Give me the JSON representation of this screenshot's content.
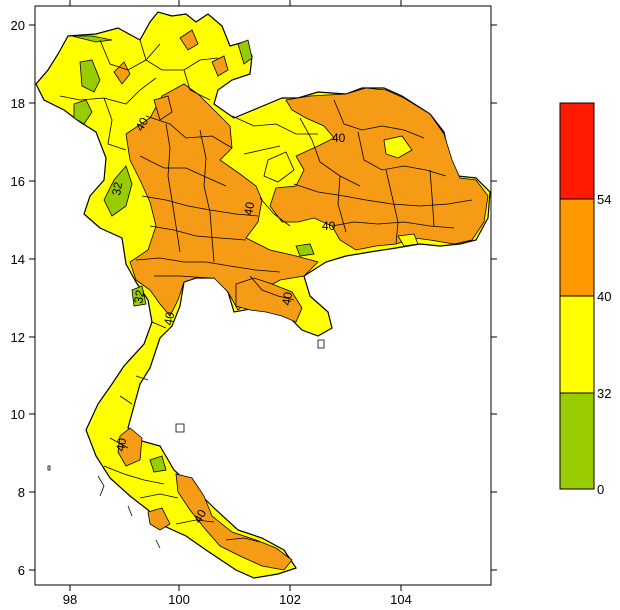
{
  "map": {
    "x_ticks": [
      "98",
      "100",
      "102",
      "104"
    ],
    "y_ticks": [
      "20",
      "18",
      "16",
      "14",
      "12",
      "10",
      "8",
      "6"
    ],
    "contour_labels": [
      "40",
      "40",
      "32",
      "40",
      "32",
      "40",
      "40",
      "40",
      "40",
      "40"
    ]
  },
  "legend": {
    "labels": [
      "54",
      "40",
      "32",
      "0"
    ],
    "colors": [
      "#ff1a00",
      "#ff9900",
      "#ffff00",
      "#99cc00"
    ]
  },
  "colors": {
    "green": "#99cc00",
    "yellow": "#ffff00",
    "orange": "#f59b16",
    "border": "#000000"
  }
}
